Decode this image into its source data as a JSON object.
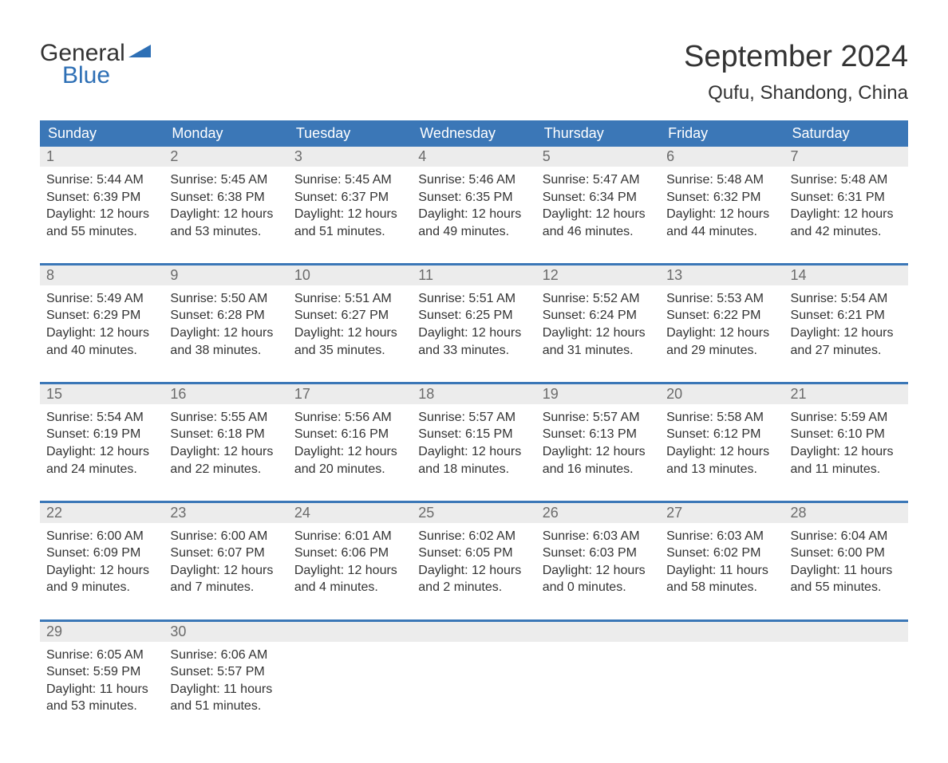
{
  "logo": {
    "word1": "General",
    "word2": "Blue"
  },
  "title": "September 2024",
  "location": "Qufu, Shandong, China",
  "colors": {
    "header_blue": "#3b77b7",
    "logo_blue": "#2d6fb5",
    "day_num_bg": "#ececec",
    "day_num_text": "#6b6b6b",
    "text": "#333333",
    "background": "#ffffff"
  },
  "day_headers": [
    "Sunday",
    "Monday",
    "Tuesday",
    "Wednesday",
    "Thursday",
    "Friday",
    "Saturday"
  ],
  "weeks": [
    [
      {
        "n": "1",
        "sunrise": "Sunrise: 5:44 AM",
        "sunset": "Sunset: 6:39 PM",
        "dl1": "Daylight: 12 hours",
        "dl2": "and 55 minutes."
      },
      {
        "n": "2",
        "sunrise": "Sunrise: 5:45 AM",
        "sunset": "Sunset: 6:38 PM",
        "dl1": "Daylight: 12 hours",
        "dl2": "and 53 minutes."
      },
      {
        "n": "3",
        "sunrise": "Sunrise: 5:45 AM",
        "sunset": "Sunset: 6:37 PM",
        "dl1": "Daylight: 12 hours",
        "dl2": "and 51 minutes."
      },
      {
        "n": "4",
        "sunrise": "Sunrise: 5:46 AM",
        "sunset": "Sunset: 6:35 PM",
        "dl1": "Daylight: 12 hours",
        "dl2": "and 49 minutes."
      },
      {
        "n": "5",
        "sunrise": "Sunrise: 5:47 AM",
        "sunset": "Sunset: 6:34 PM",
        "dl1": "Daylight: 12 hours",
        "dl2": "and 46 minutes."
      },
      {
        "n": "6",
        "sunrise": "Sunrise: 5:48 AM",
        "sunset": "Sunset: 6:32 PM",
        "dl1": "Daylight: 12 hours",
        "dl2": "and 44 minutes."
      },
      {
        "n": "7",
        "sunrise": "Sunrise: 5:48 AM",
        "sunset": "Sunset: 6:31 PM",
        "dl1": "Daylight: 12 hours",
        "dl2": "and 42 minutes."
      }
    ],
    [
      {
        "n": "8",
        "sunrise": "Sunrise: 5:49 AM",
        "sunset": "Sunset: 6:29 PM",
        "dl1": "Daylight: 12 hours",
        "dl2": "and 40 minutes."
      },
      {
        "n": "9",
        "sunrise": "Sunrise: 5:50 AM",
        "sunset": "Sunset: 6:28 PM",
        "dl1": "Daylight: 12 hours",
        "dl2": "and 38 minutes."
      },
      {
        "n": "10",
        "sunrise": "Sunrise: 5:51 AM",
        "sunset": "Sunset: 6:27 PM",
        "dl1": "Daylight: 12 hours",
        "dl2": "and 35 minutes."
      },
      {
        "n": "11",
        "sunrise": "Sunrise: 5:51 AM",
        "sunset": "Sunset: 6:25 PM",
        "dl1": "Daylight: 12 hours",
        "dl2": "and 33 minutes."
      },
      {
        "n": "12",
        "sunrise": "Sunrise: 5:52 AM",
        "sunset": "Sunset: 6:24 PM",
        "dl1": "Daylight: 12 hours",
        "dl2": "and 31 minutes."
      },
      {
        "n": "13",
        "sunrise": "Sunrise: 5:53 AM",
        "sunset": "Sunset: 6:22 PM",
        "dl1": "Daylight: 12 hours",
        "dl2": "and 29 minutes."
      },
      {
        "n": "14",
        "sunrise": "Sunrise: 5:54 AM",
        "sunset": "Sunset: 6:21 PM",
        "dl1": "Daylight: 12 hours",
        "dl2": "and 27 minutes."
      }
    ],
    [
      {
        "n": "15",
        "sunrise": "Sunrise: 5:54 AM",
        "sunset": "Sunset: 6:19 PM",
        "dl1": "Daylight: 12 hours",
        "dl2": "and 24 minutes."
      },
      {
        "n": "16",
        "sunrise": "Sunrise: 5:55 AM",
        "sunset": "Sunset: 6:18 PM",
        "dl1": "Daylight: 12 hours",
        "dl2": "and 22 minutes."
      },
      {
        "n": "17",
        "sunrise": "Sunrise: 5:56 AM",
        "sunset": "Sunset: 6:16 PM",
        "dl1": "Daylight: 12 hours",
        "dl2": "and 20 minutes."
      },
      {
        "n": "18",
        "sunrise": "Sunrise: 5:57 AM",
        "sunset": "Sunset: 6:15 PM",
        "dl1": "Daylight: 12 hours",
        "dl2": "and 18 minutes."
      },
      {
        "n": "19",
        "sunrise": "Sunrise: 5:57 AM",
        "sunset": "Sunset: 6:13 PM",
        "dl1": "Daylight: 12 hours",
        "dl2": "and 16 minutes."
      },
      {
        "n": "20",
        "sunrise": "Sunrise: 5:58 AM",
        "sunset": "Sunset: 6:12 PM",
        "dl1": "Daylight: 12 hours",
        "dl2": "and 13 minutes."
      },
      {
        "n": "21",
        "sunrise": "Sunrise: 5:59 AM",
        "sunset": "Sunset: 6:10 PM",
        "dl1": "Daylight: 12 hours",
        "dl2": "and 11 minutes."
      }
    ],
    [
      {
        "n": "22",
        "sunrise": "Sunrise: 6:00 AM",
        "sunset": "Sunset: 6:09 PM",
        "dl1": "Daylight: 12 hours",
        "dl2": "and 9 minutes."
      },
      {
        "n": "23",
        "sunrise": "Sunrise: 6:00 AM",
        "sunset": "Sunset: 6:07 PM",
        "dl1": "Daylight: 12 hours",
        "dl2": "and 7 minutes."
      },
      {
        "n": "24",
        "sunrise": "Sunrise: 6:01 AM",
        "sunset": "Sunset: 6:06 PM",
        "dl1": "Daylight: 12 hours",
        "dl2": "and 4 minutes."
      },
      {
        "n": "25",
        "sunrise": "Sunrise: 6:02 AM",
        "sunset": "Sunset: 6:05 PM",
        "dl1": "Daylight: 12 hours",
        "dl2": "and 2 minutes."
      },
      {
        "n": "26",
        "sunrise": "Sunrise: 6:03 AM",
        "sunset": "Sunset: 6:03 PM",
        "dl1": "Daylight: 12 hours",
        "dl2": "and 0 minutes."
      },
      {
        "n": "27",
        "sunrise": "Sunrise: 6:03 AM",
        "sunset": "Sunset: 6:02 PM",
        "dl1": "Daylight: 11 hours",
        "dl2": "and 58 minutes."
      },
      {
        "n": "28",
        "sunrise": "Sunrise: 6:04 AM",
        "sunset": "Sunset: 6:00 PM",
        "dl1": "Daylight: 11 hours",
        "dl2": "and 55 minutes."
      }
    ],
    [
      {
        "n": "29",
        "sunrise": "Sunrise: 6:05 AM",
        "sunset": "Sunset: 5:59 PM",
        "dl1": "Daylight: 11 hours",
        "dl2": "and 53 minutes."
      },
      {
        "n": "30",
        "sunrise": "Sunrise: 6:06 AM",
        "sunset": "Sunset: 5:57 PM",
        "dl1": "Daylight: 11 hours",
        "dl2": "and 51 minutes."
      },
      null,
      null,
      null,
      null,
      null
    ]
  ]
}
